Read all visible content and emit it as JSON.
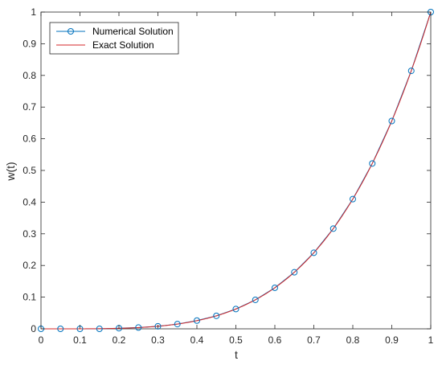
{
  "chart_data": {
    "type": "line",
    "xlabel": "t",
    "ylabel": "w(t)",
    "xlim": [
      0,
      1
    ],
    "ylim": [
      0,
      1
    ],
    "xticks": [
      "0",
      "0.1",
      "0.2",
      "0.3",
      "0.4",
      "0.5",
      "0.6",
      "0.7",
      "0.8",
      "0.9",
      "1"
    ],
    "yticks": [
      "0",
      "0.1",
      "0.2",
      "0.3",
      "0.4",
      "0.5",
      "0.6",
      "0.7",
      "0.8",
      "0.9",
      "1"
    ],
    "grid": false,
    "legend_position": "top-left",
    "series": [
      {
        "name": "Numerical Solution",
        "color": "#0072BD",
        "marker": "circle",
        "x": [
          0,
          0.05,
          0.1,
          0.15,
          0.2,
          0.25,
          0.3,
          0.35,
          0.4,
          0.45,
          0.5,
          0.55,
          0.6,
          0.65,
          0.7,
          0.75,
          0.8,
          0.85,
          0.9,
          0.95,
          1
        ],
        "y": [
          0,
          0,
          0,
          0,
          0.002,
          0.004,
          0.008,
          0.015,
          0.026,
          0.041,
          0.0625,
          0.0915,
          0.1296,
          0.1785,
          0.2401,
          0.3164,
          0.4096,
          0.522,
          0.6561,
          0.8145,
          1
        ]
      },
      {
        "name": "Exact Solution",
        "color": "#D62728",
        "marker": "none",
        "function": "w(t) = t^4 for t >= 0.1, 0 before"
      }
    ]
  }
}
